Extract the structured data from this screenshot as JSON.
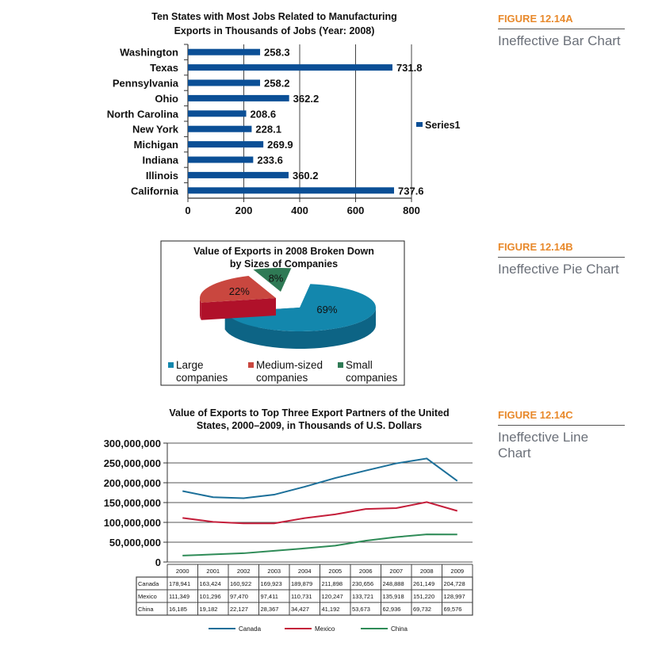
{
  "figures": [
    {
      "label": "FIGURE 12.14A",
      "caption": "Ineffective Bar Chart"
    },
    {
      "label": "FIGURE 12.14B",
      "caption": "Ineffective Pie Chart"
    },
    {
      "label": "FIGURE 12.14C",
      "caption": "Ineffective Line Chart"
    }
  ],
  "chart_data": [
    {
      "type": "bar",
      "orientation": "horizontal",
      "title": [
        "Ten States with Most Jobs Related to Manufacturing",
        "Exports in Thousands of Jobs (Year: 2008)"
      ],
      "categories": [
        "Washington",
        "Texas",
        "Pennsylvania",
        "Ohio",
        "North Carolina",
        "New York",
        "Michigan",
        "Indiana",
        "Illinois",
        "California"
      ],
      "values": [
        258.3,
        731.8,
        258.2,
        362.2,
        208.6,
        228.1,
        269.9,
        233.6,
        360.2,
        737.6
      ],
      "data_labels": [
        "258.3",
        "731.8",
        "258.2",
        "362.2",
        "208.6",
        "228.1",
        "269.9",
        "233.6",
        "360.2",
        "737.6"
      ],
      "series_name": "Series1",
      "xlim": [
        0,
        800
      ],
      "xticks": [
        "0",
        "200",
        "400",
        "600",
        "800"
      ],
      "grid": true,
      "legend": "right",
      "color": "#0b4f96"
    },
    {
      "type": "pie",
      "style": "3d-exploded",
      "title": [
        "Value of Exports in 2008 Broken Down",
        "by Sizes of Companies"
      ],
      "slices": [
        {
          "name": [
            "Large",
            "companies"
          ],
          "value": 69,
          "label": "69%",
          "color": "#1387ad"
        },
        {
          "name": [
            "Medium-sized",
            "companies"
          ],
          "value": 22,
          "label": "22%",
          "color": "#c9473f"
        },
        {
          "name": [
            "Small",
            "companies"
          ],
          "value": 8,
          "label": "8%",
          "color": "#2f7a55"
        }
      ],
      "legend": "bottom"
    },
    {
      "type": "line",
      "title": [
        "Value of Exports to Top Three Export Partners of the United",
        "States, 2000–2009, in Thousands of U.S. Dollars"
      ],
      "categories": [
        "2000",
        "2001",
        "2002",
        "2003",
        "2004",
        "2005",
        "2006",
        "2007",
        "2008",
        "2009"
      ],
      "yticks": [
        "0",
        "50,000,000",
        "100,000,000",
        "150,000,000",
        "200,000,000",
        "250,000,000",
        "300,000,000"
      ],
      "ylim": [
        0,
        300000000
      ],
      "grid": true,
      "legend": "bottom",
      "series": [
        {
          "name": "Canada",
          "color": "#1b6f99",
          "values": [
            178941,
            163424,
            160922,
            169923,
            189879,
            211898,
            230656,
            248888,
            261149,
            204728
          ],
          "labels": [
            "178,941",
            "163,424",
            "160,922",
            "169,923",
            "189,879",
            "211,898",
            "230,656",
            "248,888",
            "261,149",
            "204,728"
          ]
        },
        {
          "name": "Mexico",
          "color": "#c41e3a",
          "values": [
            111349,
            101296,
            97470,
            97411,
            110731,
            120247,
            133721,
            135918,
            151220,
            128997
          ],
          "labels": [
            "111,349",
            "101,296",
            "97,470",
            "97,411",
            "110,731",
            "120,247",
            "133,721",
            "135,918",
            "151,220",
            "128,997"
          ]
        },
        {
          "name": "China",
          "color": "#2e8b57",
          "values": [
            16185,
            19182,
            22127,
            28367,
            34427,
            41192,
            53673,
            62936,
            69732,
            69576
          ],
          "labels": [
            "16,185",
            "19,182",
            "22,127",
            "28,367",
            "34,427",
            "41,192",
            "53,673",
            "62,936",
            "69,732",
            "69,576"
          ]
        }
      ]
    }
  ]
}
